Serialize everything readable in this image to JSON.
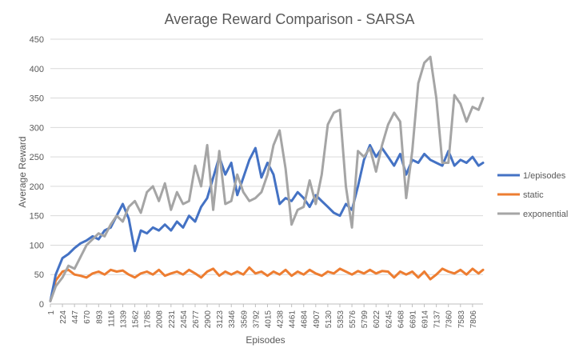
{
  "chart_data": {
    "type": "line",
    "title": "Average Reward Comparison - SARSA",
    "xlabel": "Episodes",
    "ylabel": "Average Reward",
    "ylim": [
      0,
      450
    ],
    "yticks": [
      0,
      50,
      100,
      150,
      200,
      250,
      300,
      350,
      400,
      450
    ],
    "xlim": [
      1,
      8000
    ],
    "xticks": [
      1,
      224,
      447,
      670,
      893,
      1116,
      1339,
      1562,
      1785,
      2008,
      2231,
      2454,
      2677,
      2900,
      3123,
      3346,
      3569,
      3792,
      4015,
      4238,
      4461,
      4684,
      4907,
      5130,
      5353,
      5576,
      5799,
      6022,
      6245,
      6468,
      6691,
      6914,
      7137,
      7360,
      7583,
      7806
    ],
    "grid": true,
    "legend_position": "right",
    "series": [
      {
        "name": "1/episodes",
        "color": "#4472C4",
        "x": [
          1,
          100,
          224,
          335,
          447,
          558,
          670,
          781,
          893,
          1004,
          1116,
          1227,
          1339,
          1450,
          1562,
          1673,
          1785,
          1896,
          2008,
          2119,
          2231,
          2342,
          2454,
          2565,
          2677,
          2788,
          2900,
          3011,
          3123,
          3234,
          3346,
          3457,
          3569,
          3680,
          3792,
          3903,
          4015,
          4126,
          4238,
          4349,
          4461,
          4572,
          4684,
          4795,
          4907,
          5018,
          5130,
          5241,
          5353,
          5464,
          5576,
          5687,
          5799,
          5910,
          6022,
          6133,
          6245,
          6356,
          6468,
          6579,
          6691,
          6802,
          6914,
          7025,
          7137,
          7248,
          7360,
          7471,
          7583,
          7694,
          7806,
          7917,
          8000
        ],
        "y": [
          5,
          50,
          78,
          85,
          95,
          103,
          108,
          115,
          110,
          125,
          130,
          150,
          170,
          145,
          90,
          125,
          120,
          130,
          125,
          135,
          125,
          140,
          130,
          150,
          140,
          165,
          180,
          215,
          250,
          220,
          240,
          185,
          215,
          245,
          265,
          215,
          240,
          220,
          170,
          180,
          175,
          190,
          180,
          165,
          185,
          175,
          165,
          155,
          150,
          170,
          160,
          200,
          245,
          270,
          250,
          265,
          250,
          235,
          255,
          220,
          245,
          240,
          255,
          245,
          240,
          235,
          260,
          235,
          245,
          240,
          250,
          235,
          240
        ]
      },
      {
        "name": "static",
        "color": "#ED7D31",
        "x": [
          1,
          100,
          224,
          335,
          447,
          558,
          670,
          781,
          893,
          1004,
          1116,
          1227,
          1339,
          1450,
          1562,
          1673,
          1785,
          1896,
          2008,
          2119,
          2231,
          2342,
          2454,
          2565,
          2677,
          2788,
          2900,
          3011,
          3123,
          3234,
          3346,
          3457,
          3569,
          3680,
          3792,
          3903,
          4015,
          4126,
          4238,
          4349,
          4461,
          4572,
          4684,
          4795,
          4907,
          5018,
          5130,
          5241,
          5353,
          5464,
          5576,
          5687,
          5799,
          5910,
          6022,
          6133,
          6245,
          6356,
          6468,
          6579,
          6691,
          6802,
          6914,
          7025,
          7137,
          7248,
          7360,
          7471,
          7583,
          7694,
          7806,
          7917,
          8000
        ],
        "y": [
          5,
          40,
          55,
          58,
          50,
          48,
          45,
          52,
          55,
          50,
          58,
          55,
          57,
          50,
          45,
          52,
          55,
          50,
          58,
          48,
          52,
          55,
          50,
          58,
          52,
          45,
          55,
          60,
          48,
          55,
          50,
          55,
          50,
          62,
          52,
          55,
          48,
          55,
          50,
          58,
          48,
          55,
          50,
          58,
          52,
          48,
          55,
          52,
          60,
          55,
          50,
          56,
          52,
          58,
          52,
          56,
          55,
          45,
          55,
          50,
          55,
          45,
          55,
          42,
          50,
          60,
          55,
          52,
          58,
          50,
          60,
          52,
          58
        ]
      },
      {
        "name": "exponential",
        "color": "#A5A5A5",
        "x": [
          1,
          100,
          224,
          335,
          447,
          558,
          670,
          781,
          893,
          1004,
          1116,
          1227,
          1339,
          1450,
          1562,
          1673,
          1785,
          1896,
          2008,
          2119,
          2231,
          2342,
          2454,
          2565,
          2677,
          2788,
          2900,
          3011,
          3123,
          3234,
          3346,
          3457,
          3569,
          3680,
          3792,
          3903,
          4015,
          4126,
          4238,
          4349,
          4461,
          4572,
          4684,
          4795,
          4907,
          5018,
          5130,
          5241,
          5353,
          5464,
          5576,
          5687,
          5799,
          5910,
          6022,
          6133,
          6245,
          6356,
          6468,
          6579,
          6691,
          6802,
          6914,
          7025,
          7137,
          7248,
          7360,
          7471,
          7583,
          7694,
          7806,
          7917,
          8000
        ],
        "y": [
          5,
          30,
          45,
          65,
          60,
          80,
          100,
          110,
          120,
          115,
          135,
          150,
          140,
          165,
          175,
          155,
          190,
          200,
          175,
          205,
          160,
          190,
          170,
          175,
          235,
          200,
          270,
          160,
          260,
          170,
          175,
          220,
          190,
          175,
          180,
          190,
          220,
          270,
          295,
          230,
          135,
          160,
          165,
          210,
          170,
          220,
          305,
          325,
          330,
          200,
          130,
          260,
          250,
          265,
          225,
          270,
          305,
          325,
          310,
          180,
          260,
          375,
          410,
          420,
          350,
          240,
          240,
          355,
          340,
          310,
          335,
          330,
          350
        ]
      }
    ]
  }
}
